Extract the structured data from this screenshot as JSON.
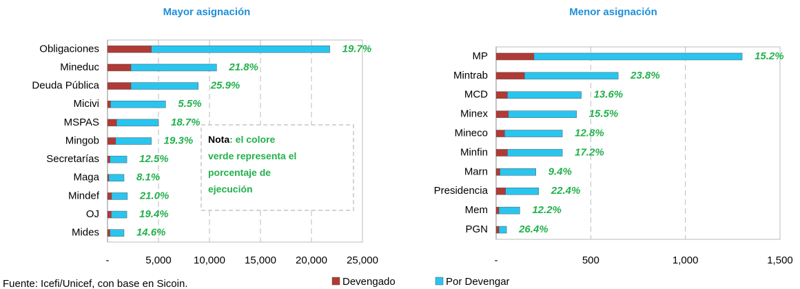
{
  "chart_data": [
    {
      "type": "bar",
      "orientation": "horizontal",
      "stacked": true,
      "title": "Mayor asignación",
      "categories": [
        "Obligaciones",
        "Mineduc",
        "Deuda Pública",
        "Micivi",
        "MSPAS",
        "Mingob",
        "Secretarías",
        "Maga",
        "Mindef",
        "OJ",
        "Mides"
      ],
      "series": [
        {
          "name": "Devengado",
          "color": "#b03a36",
          "values": [
            4300,
            2300,
            2300,
            300,
            900,
            800,
            240,
            130,
            400,
            370,
            240
          ]
        },
        {
          "name": "Por Devengar",
          "color": "#29c5ef",
          "values": [
            17500,
            8400,
            6600,
            5400,
            4100,
            3500,
            1660,
            1490,
            1550,
            1530,
            1380
          ]
        }
      ],
      "execution_labels": [
        "19.7%",
        "21.8%",
        "25.9%",
        "5.5%",
        "18.7%",
        "19.3%",
        "12.5%",
        "8.1%",
        "21.0%",
        "19.4%",
        "14.6%"
      ],
      "xlim": [
        0,
        25000
      ],
      "xticks": [
        {
          "value": 0,
          "label": "-"
        },
        {
          "value": 5000,
          "label": "5,000"
        },
        {
          "value": 10000,
          "label": "10,000"
        },
        {
          "value": 15000,
          "label": "15,000"
        },
        {
          "value": 20000,
          "label": "20,000"
        },
        {
          "value": 25000,
          "label": "25,000"
        }
      ],
      "grid": true,
      "note": {
        "bold": "Nota",
        "text": ": el colore verde representa el porcentaje de ejecución"
      }
    },
    {
      "type": "bar",
      "orientation": "horizontal",
      "stacked": true,
      "title": "Menor asignación",
      "categories": [
        "MP",
        "Mintrab",
        "MCD",
        "Minex",
        "Mineco",
        "Minfin",
        "Marn",
        "Presidencia",
        "Mem",
        "PGN"
      ],
      "series": [
        {
          "name": "Devengado",
          "color": "#b03a36",
          "values": [
            200,
            150,
            60,
            65,
            45,
            60,
            20,
            50,
            15,
            15
          ]
        },
        {
          "name": "Por Devengar",
          "color": "#29c5ef",
          "values": [
            1100,
            495,
            390,
            360,
            305,
            290,
            190,
            175,
            110,
            40
          ]
        }
      ],
      "execution_labels": [
        "15.2%",
        "23.8%",
        "13.6%",
        "15.5%",
        "12.8%",
        "17.2%",
        "9.4%",
        "22.4%",
        "12.2%",
        "26.4%"
      ],
      "xlim": [
        0,
        1500
      ],
      "xticks": [
        {
          "value": 0,
          "label": "-"
        },
        {
          "value": 500,
          "label": "500"
        },
        {
          "value": 1000,
          "label": "1,000"
        },
        {
          "value": 1500,
          "label": "1,500"
        }
      ],
      "grid": true
    }
  ],
  "source": "Fuente: Icefi/Unicef, con base en Sicoin."
}
